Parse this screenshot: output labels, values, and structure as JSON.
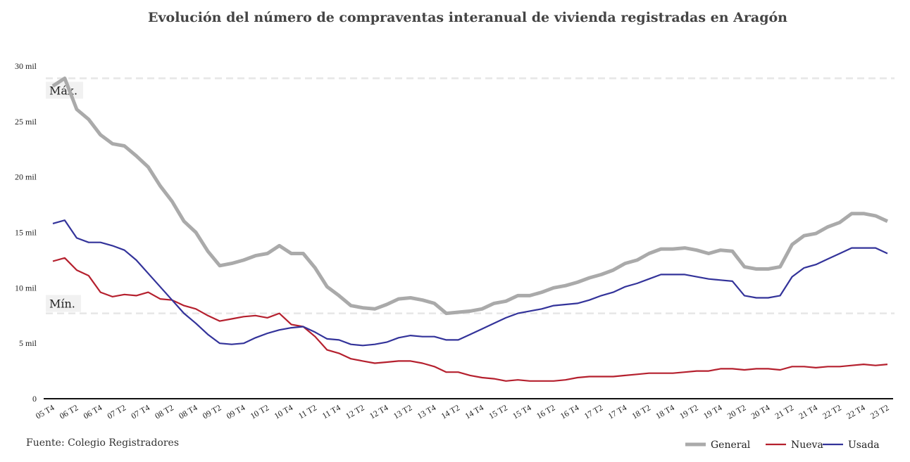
{
  "chart_data": {
    "type": "line",
    "title": "Evolución del número de compraventas interanual de vivienda registradas en Aragón",
    "source": "Fuente: Colegio Registradores",
    "xlabel": "",
    "ylabel": "",
    "ylim": [
      0,
      30000
    ],
    "y_ticks": [
      {
        "value": 0,
        "label": "0"
      },
      {
        "value": 5000,
        "label": "5 mil"
      },
      {
        "value": 10000,
        "label": "10 mil"
      },
      {
        "value": 15000,
        "label": "15 mil"
      },
      {
        "value": 20000,
        "label": "20 mil"
      },
      {
        "value": 25000,
        "label": "25 mil"
      },
      {
        "value": 30000,
        "label": "30 mil"
      }
    ],
    "grid": false,
    "legend_position": "bottom-right",
    "categories": [
      "05 T4",
      "06 T1",
      "06 T2",
      "06 T3",
      "06 T4",
      "07 T1",
      "07 T2",
      "07 T3",
      "07 T4",
      "08 T1",
      "08 T2",
      "08 T3",
      "08 T4",
      "09 T1",
      "09 T2",
      "09 T3",
      "09 T4",
      "10 T1",
      "10 T2",
      "10 T3",
      "10 T4",
      "11 T1",
      "11 T2",
      "11 T3",
      "11 T4",
      "12 T1",
      "12 T2",
      "12 T3",
      "12 T4",
      "13 T1",
      "13 T2",
      "13 T3",
      "13 T4",
      "14 T1",
      "14 T2",
      "14 T3",
      "14 T4",
      "15 T1",
      "15 T2",
      "15 T3",
      "15 T4",
      "16 T1",
      "16 T2",
      "16 T3",
      "16 T4",
      "17 T1",
      "17 T2",
      "17 T3",
      "17 T4",
      "18 T1",
      "18 T2",
      "18 T3",
      "18 T4",
      "19 T1",
      "19 T2",
      "19 T3",
      "19 T4",
      "20 T1",
      "20 T2",
      "20 T3",
      "20 T4",
      "21 T1",
      "21 T2",
      "21 T3",
      "21 T4",
      "22 T1",
      "22 T2",
      "22 T3",
      "22 T4",
      "23 T1",
      "23 T2"
    ],
    "x_tick_labels": [
      "05 T4",
      "06 T2",
      "06 T4",
      "07 T2",
      "07 T4",
      "08 T2",
      "08 T4",
      "09 T2",
      "09 T4",
      "10 T2",
      "10 T4",
      "11 T2",
      "11 T4",
      "12 T2",
      "12 T4",
      "13 T2",
      "13 T4",
      "14 T2",
      "14 T4",
      "15 T2",
      "15 T4",
      "16 T2",
      "16 T4",
      "17 T2",
      "17 T4",
      "18 T2",
      "18 T4",
      "19 T2",
      "19 T4",
      "20 T2",
      "20 T4",
      "21 T2",
      "21 T4",
      "22 T2",
      "22 T4",
      "23 T2"
    ],
    "reference_lines": [
      {
        "label": "Máx.",
        "value": 28900
      },
      {
        "label": "Mín.",
        "value": 7700
      }
    ],
    "series": [
      {
        "name": "General",
        "color": "#aaaaaa",
        "values": [
          28200,
          28900,
          26100,
          25200,
          23800,
          23000,
          22800,
          21900,
          20900,
          19200,
          17800,
          16000,
          15000,
          13300,
          12000,
          12200,
          12500,
          12900,
          13100,
          13800,
          13100,
          13100,
          11800,
          10100,
          9300,
          8400,
          8200,
          8100,
          8500,
          9000,
          9100,
          8900,
          8600,
          7700,
          7800,
          7900,
          8100,
          8600,
          8800,
          9300,
          9300,
          9600,
          10000,
          10200,
          10500,
          10900,
          11200,
          11600,
          12200,
          12500,
          13100,
          13500,
          13500,
          13600,
          13400,
          13100,
          13400,
          13300,
          11900,
          11700,
          11700,
          11900,
          13900,
          14700,
          14900,
          15500,
          15900,
          16700,
          16700,
          16500,
          16000
        ]
      },
      {
        "name": "Nueva",
        "color": "#b5202e",
        "values": [
          12400,
          12700,
          11600,
          11100,
          9600,
          9200,
          9400,
          9300,
          9600,
          9000,
          8900,
          8400,
          8100,
          7500,
          7000,
          7200,
          7400,
          7500,
          7300,
          7700,
          6700,
          6500,
          5600,
          4400,
          4100,
          3600,
          3400,
          3200,
          3300,
          3400,
          3400,
          3200,
          2900,
          2400,
          2400,
          2100,
          1900,
          1800,
          1600,
          1700,
          1600,
          1600,
          1600,
          1700,
          1900,
          2000,
          2000,
          2000,
          2100,
          2200,
          2300,
          2300,
          2300,
          2400,
          2500,
          2500,
          2700,
          2700,
          2600,
          2700,
          2700,
          2600,
          2900,
          2900,
          2800,
          2900,
          2900,
          3000,
          3100,
          3000,
          3100
        ]
      },
      {
        "name": "Usada",
        "color": "#33339a",
        "values": [
          15800,
          16100,
          14500,
          14100,
          14100,
          13800,
          13400,
          12500,
          11300,
          10100,
          8900,
          7700,
          6800,
          5800,
          5000,
          4900,
          5000,
          5500,
          5900,
          6200,
          6400,
          6500,
          6000,
          5400,
          5300,
          4900,
          4800,
          4900,
          5100,
          5500,
          5700,
          5600,
          5600,
          5300,
          5300,
          5800,
          6300,
          6800,
          7300,
          7700,
          7900,
          8100,
          8400,
          8500,
          8600,
          8900,
          9300,
          9600,
          10100,
          10400,
          10800,
          11200,
          11200,
          11200,
          11000,
          10800,
          10700,
          10600,
          9300,
          9100,
          9100,
          9300,
          11000,
          11800,
          12100,
          12600,
          13100,
          13600,
          13600,
          13600,
          13100
        ]
      }
    ]
  }
}
